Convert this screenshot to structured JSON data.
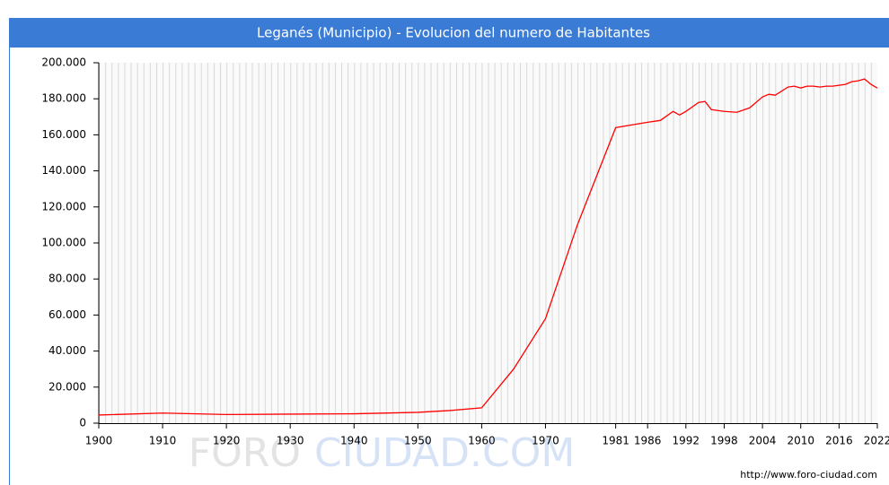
{
  "chart_data": {
    "type": "line",
    "title": "Leganés (Municipio) - Evolucion del numero de Habitantes",
    "watermark": [
      "FORO",
      "CIUDAD.COM"
    ],
    "source": "http://www.foro-ciudad.com",
    "x": [
      1900,
      1910,
      1920,
      1930,
      1940,
      1950,
      1955,
      1960,
      1965,
      1970,
      1975,
      1981,
      1986,
      1988,
      1990,
      1991,
      1992,
      1994,
      1995,
      1996,
      1998,
      2000,
      2002,
      2004,
      2005,
      2006,
      2008,
      2009,
      2010,
      2011,
      2012,
      2013,
      2014,
      2015,
      2016,
      2017,
      2018,
      2019,
      2020,
      2021,
      2022
    ],
    "series": [
      {
        "name": "Habitantes",
        "color": "#ff0000",
        "values": [
          4500,
          5600,
          4800,
          5000,
          5200,
          6000,
          7000,
          8500,
          30000,
          58000,
          110000,
          164000,
          167000,
          168000,
          173000,
          171000,
          173000,
          178000,
          178500,
          174000,
          173000,
          172500,
          175000,
          181000,
          182500,
          182000,
          186500,
          187000,
          186000,
          187000,
          187000,
          186500,
          187000,
          187000,
          187500,
          188000,
          189500,
          190000,
          191000,
          188000,
          186000
        ]
      }
    ],
    "xlim": [
      1900,
      2022
    ],
    "xticks": [
      1900,
      1910,
      1920,
      1930,
      1940,
      1950,
      1960,
      1970,
      1981,
      1986,
      1992,
      1998,
      2004,
      2010,
      2016,
      2022
    ],
    "ylim": [
      0,
      200000
    ],
    "yticks": [
      0,
      {
        "value": 20000,
        "label": "20.000"
      },
      {
        "value": 40000,
        "label": "40.000"
      },
      {
        "value": 60000,
        "label": "60.000"
      },
      {
        "value": 80000,
        "label": "80.000"
      },
      {
        "value": 100000,
        "label": "100.000"
      },
      {
        "value": 120000,
        "label": "120.000"
      },
      {
        "value": 140000,
        "label": "140.000"
      },
      {
        "value": 160000,
        "label": "160.000"
      },
      {
        "value": 180000,
        "label": "180.000"
      },
      {
        "value": 200000,
        "label": "200.000"
      }
    ],
    "grid": true
  }
}
